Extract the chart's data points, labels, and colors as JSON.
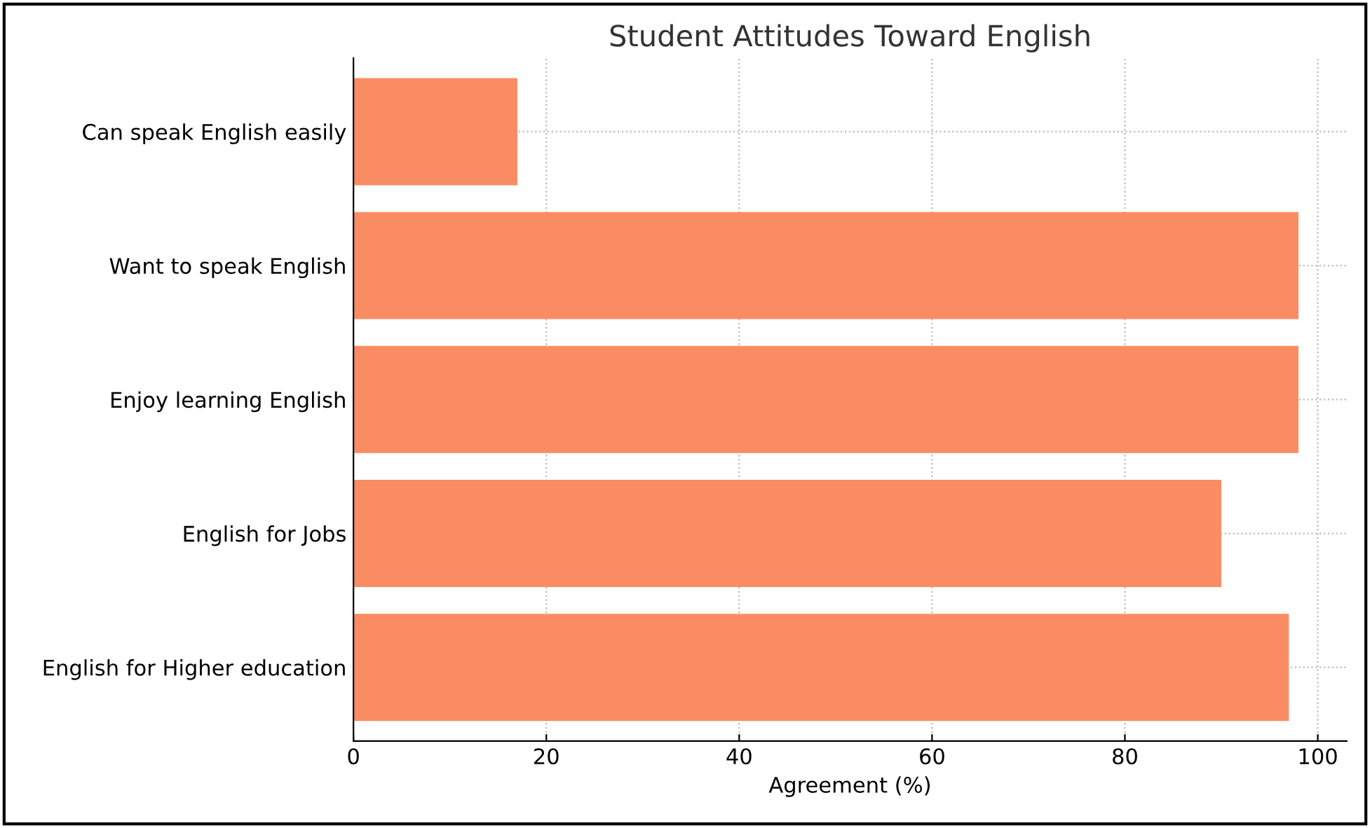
{
  "chart_data": {
    "type": "bar",
    "orientation": "horizontal",
    "title": "Student Attitudes Toward English",
    "xlabel": "Agreement (%)",
    "categories": [
      "Can speak English easily",
      "Want to speak English",
      "Enjoy learning English",
      "English for Jobs",
      "English for Higher education"
    ],
    "values": [
      17,
      98,
      98,
      90,
      97
    ],
    "color": "#fa8c64",
    "xlim": [
      0,
      103
    ],
    "xticks": [
      0,
      20,
      40,
      60,
      80,
      100
    ],
    "grid": true
  }
}
